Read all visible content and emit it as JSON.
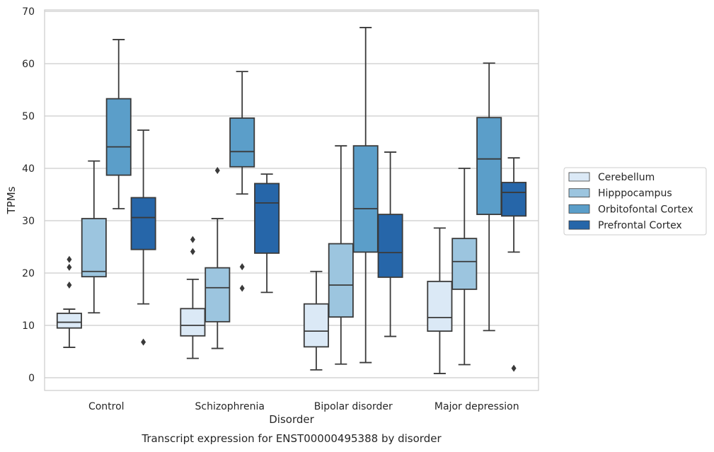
{
  "chart_data": {
    "type": "box",
    "title": "",
    "caption": "Transcript expression for ENST00000495388 by disorder",
    "xlabel": "Disorder",
    "ylabel": "TPMs",
    "ylim": [
      -2.5,
      70.5
    ],
    "yticks": [
      0,
      10,
      20,
      30,
      40,
      50,
      60,
      70
    ],
    "grid": "horizontal",
    "legend_position": "right",
    "categories": [
      "Control",
      "Schizophrenia",
      "Bipolar disorder",
      "Major depression"
    ],
    "series": [
      {
        "name": "Cerebellum",
        "color": "#dbe9f6",
        "boxes": [
          {
            "whisker_low": 5.8,
            "q1": 9.5,
            "median": 10.6,
            "q3": 12.3,
            "whisker_high": 13.1,
            "outliers": [
              17.7,
              21.1,
              22.6
            ]
          },
          {
            "whisker_low": 3.7,
            "q1": 8.0,
            "median": 10.0,
            "q3": 13.2,
            "whisker_high": 18.8,
            "outliers": [
              24.1,
              26.4
            ]
          },
          {
            "whisker_low": 1.5,
            "q1": 5.9,
            "median": 8.9,
            "q3": 14.1,
            "whisker_high": 20.3,
            "outliers": []
          },
          {
            "whisker_low": 0.8,
            "q1": 8.9,
            "median": 11.5,
            "q3": 18.4,
            "whisker_high": 28.6,
            "outliers": []
          }
        ]
      },
      {
        "name": "Hipppocampus",
        "color": "#9cc5df",
        "boxes": [
          {
            "whisker_low": 12.4,
            "q1": 19.3,
            "median": 20.3,
            "q3": 30.4,
            "whisker_high": 41.4,
            "outliers": []
          },
          {
            "whisker_low": 5.6,
            "q1": 10.7,
            "median": 17.2,
            "q3": 21.0,
            "whisker_high": 30.4,
            "outliers": [
              39.6
            ]
          },
          {
            "whisker_low": 2.6,
            "q1": 11.6,
            "median": 17.7,
            "q3": 25.6,
            "whisker_high": 44.3,
            "outliers": []
          },
          {
            "whisker_low": 2.5,
            "q1": 16.9,
            "median": 22.2,
            "q3": 26.6,
            "whisker_high": 40.0,
            "outliers": []
          }
        ]
      },
      {
        "name": "Orbitofontal Cortex",
        "color": "#5b9ec9",
        "boxes": [
          {
            "whisker_low": 32.3,
            "q1": 38.7,
            "median": 44.1,
            "q3": 53.3,
            "whisker_high": 64.6,
            "outliers": []
          },
          {
            "whisker_low": 35.1,
            "q1": 40.3,
            "median": 43.2,
            "q3": 49.6,
            "whisker_high": 58.5,
            "outliers": [
              17.1,
              21.2
            ]
          },
          {
            "whisker_low": 2.9,
            "q1": 24.0,
            "median": 32.3,
            "q3": 44.3,
            "whisker_high": 66.9,
            "outliers": []
          },
          {
            "whisker_low": 9.0,
            "q1": 31.2,
            "median": 41.8,
            "q3": 49.7,
            "whisker_high": 60.1,
            "outliers": []
          }
        ]
      },
      {
        "name": "Prefrontal Cortex",
        "color": "#2666a9",
        "boxes": [
          {
            "whisker_low": 14.1,
            "q1": 24.5,
            "median": 30.6,
            "q3": 34.4,
            "whisker_high": 47.3,
            "outliers": [
              6.8
            ]
          },
          {
            "whisker_low": 16.3,
            "q1": 23.8,
            "median": 33.4,
            "q3": 37.1,
            "whisker_high": 38.9,
            "outliers": []
          },
          {
            "whisker_low": 7.9,
            "q1": 19.2,
            "median": 23.9,
            "q3": 31.2,
            "whisker_high": 43.1,
            "outliers": []
          },
          {
            "whisker_low": 24.0,
            "q1": 30.9,
            "median": 35.4,
            "q3": 37.3,
            "whisker_high": 42.0,
            "outliers": [
              1.8
            ]
          }
        ]
      }
    ],
    "style": {
      "line_color": "#3a3a3a",
      "grid_color": "#cccccc",
      "frame_color": "#cccccc"
    }
  }
}
